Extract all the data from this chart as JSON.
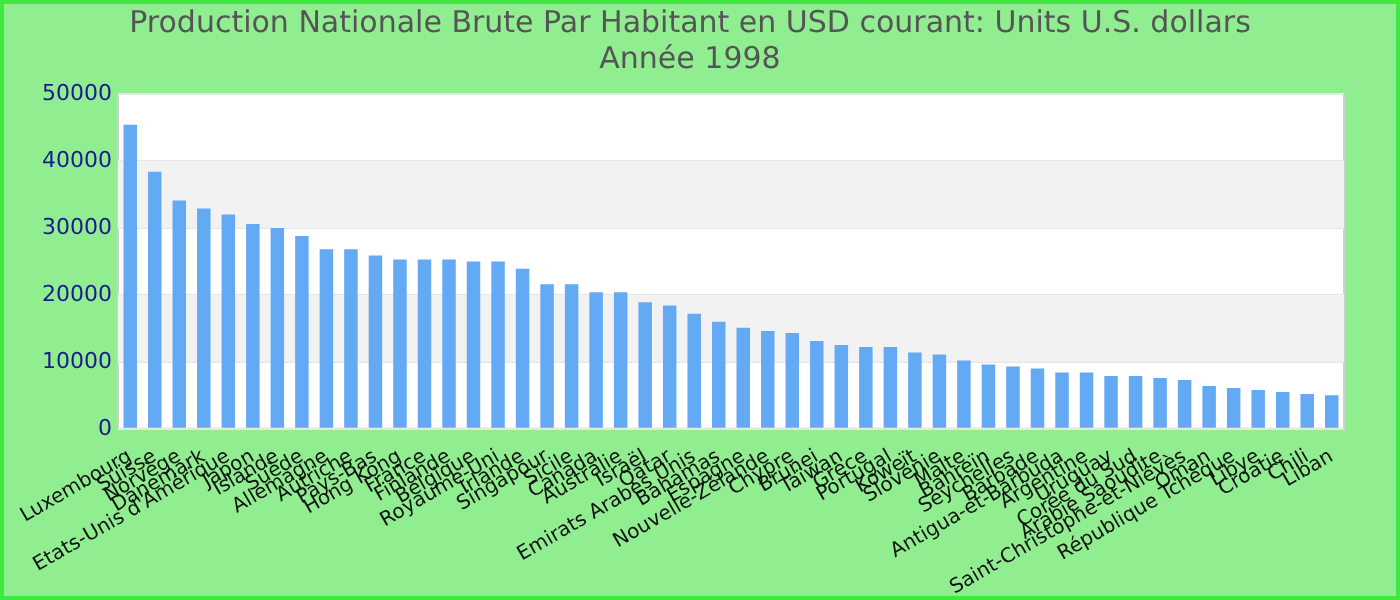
{
  "chart_data": {
    "type": "bar",
    "title": [
      "Production Nationale Brute Par Habitant en USD courant: Units U.S. dollars",
      "Année 1998"
    ],
    "categories": [
      "Luxembourg",
      "Suisse",
      "Norvège",
      "Danemark",
      "Etats-Unis d'Amérique",
      "Japon",
      "Islande",
      "Suède",
      "Allemagne",
      "Autriche",
      "Pays-Bas",
      "Hong Kong",
      "France",
      "Finlande",
      "Belgique",
      "Royaume-Uni",
      "Irlande",
      "Singapour",
      "Sicile",
      "Canada",
      "Australie",
      "Israël",
      "Qatar",
      "Emirats Arabes Unis",
      "Bahamas",
      "Espagne",
      "Nouvelle-Zélande",
      "Chypre",
      "Brunei",
      "Taïwan",
      "Grèce",
      "Portugal",
      "Koweït",
      "Slovénie",
      "Malte",
      "Bahreïn",
      "Seychelles",
      "Barbade",
      "Antigua-et-Barbuda",
      "Argentine",
      "Uruguay",
      "Corée du Sud",
      "Arabie Saoudite",
      "Saint-Christophe-et-Niévès",
      "Oman",
      "République Tchèque",
      "Libye",
      "Croatie",
      "Chili",
      "Liban"
    ],
    "values": [
      45400,
      38400,
      34100,
      32900,
      32000,
      30600,
      30000,
      28800,
      26800,
      26800,
      25900,
      25300,
      25300,
      25300,
      25000,
      25000,
      23900,
      21600,
      21600,
      20400,
      20400,
      18900,
      18400,
      17200,
      16000,
      15100,
      14600,
      14300,
      13100,
      12500,
      12200,
      12200,
      11400,
      11100,
      10200,
      9600,
      9300,
      9000,
      8400,
      8400,
      7900,
      7900,
      7600,
      7300,
      6400,
      6100,
      5800,
      5500,
      5200,
      5000
    ],
    "color": "#63a9f4",
    "ylim": [
      0,
      50000
    ],
    "yticks": [
      0,
      10000,
      20000,
      30000,
      40000,
      50000
    ],
    "grid": "y",
    "legend": false
  }
}
